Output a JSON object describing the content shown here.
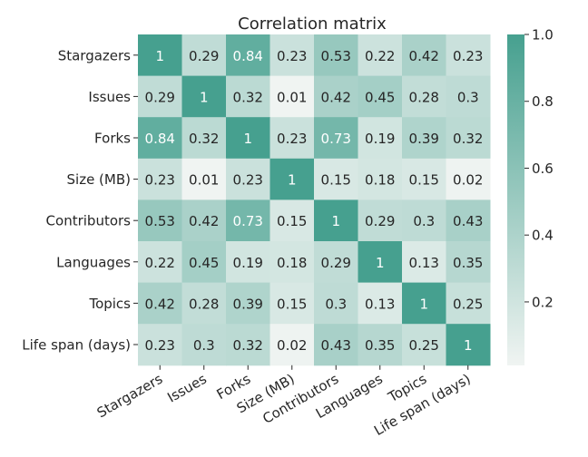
{
  "chart_data": {
    "type": "heatmap",
    "title": "Correlation matrix",
    "xlabel": "",
    "ylabel": "",
    "labels": [
      "Stargazers",
      "Issues",
      "Forks",
      "Size (MB)",
      "Contributors",
      "Languages",
      "Topics",
      "Life span (days)"
    ],
    "matrix": [
      [
        1,
        0.29,
        0.84,
        0.23,
        0.53,
        0.22,
        0.42,
        0.23
      ],
      [
        0.29,
        1,
        0.32,
        0.01,
        0.42,
        0.45,
        0.28,
        0.3
      ],
      [
        0.84,
        0.32,
        1,
        0.23,
        0.73,
        0.19,
        0.39,
        0.32
      ],
      [
        0.23,
        0.01,
        0.23,
        1,
        0.15,
        0.18,
        0.15,
        0.02
      ],
      [
        0.53,
        0.42,
        0.73,
        0.15,
        1,
        0.29,
        0.3,
        0.43
      ],
      [
        0.22,
        0.45,
        0.19,
        0.18,
        0.29,
        1,
        0.13,
        0.35
      ],
      [
        0.42,
        0.28,
        0.39,
        0.15,
        0.3,
        0.13,
        1,
        0.25
      ],
      [
        0.23,
        0.3,
        0.32,
        0.02,
        0.43,
        0.35,
        0.25,
        1
      ]
    ],
    "annotate": true,
    "colorbar": {
      "range": [
        0.01,
        1.0
      ],
      "ticks": [
        0.2,
        0.4,
        0.6,
        0.8,
        1.0
      ],
      "tick_labels": [
        "0.2",
        "0.4",
        "0.6",
        "0.8",
        "1.0"
      ],
      "color_low": "#f0f4f2",
      "color_high": "#46a08f"
    },
    "grid": false,
    "x_tick_rotation": "angled"
  }
}
